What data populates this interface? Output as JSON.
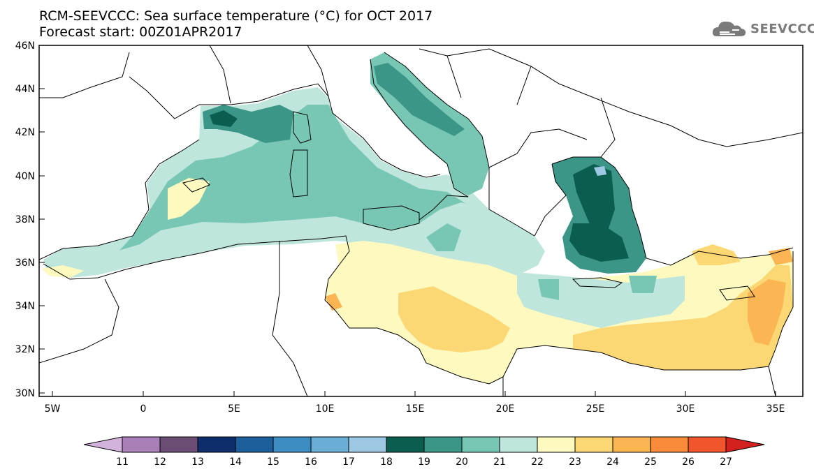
{
  "header": {
    "title_line1": "RCM-SEEVCCC: Sea surface temperature (°C) for OCT 2017",
    "title_line2": "Forecast start: 00Z01APR2017"
  },
  "logo": {
    "icon": "cloud-icon",
    "text": "SEEVCCC",
    "color": "#7a7a7a"
  },
  "map": {
    "lat_labels": [
      "46N",
      "44N",
      "42N",
      "40N",
      "38N",
      "36N",
      "34N",
      "32N",
      "30N"
    ],
    "lon_labels": [
      "5W",
      "0",
      "5E",
      "10E",
      "15E",
      "20E",
      "25E",
      "30E",
      "35E"
    ]
  },
  "colorbar": {
    "labels": [
      "11",
      "12",
      "13",
      "14",
      "15",
      "16",
      "17",
      "18",
      "19",
      "20",
      "21",
      "22",
      "23",
      "24",
      "25",
      "26",
      "27"
    ],
    "colors": [
      "#d3b3dc",
      "#a97fb8",
      "#6b4c73",
      "#0d2d6b",
      "#1d5f9b",
      "#3d8dc3",
      "#6aaed6",
      "#9cc8e3",
      "#0b5e4f",
      "#3b9687",
      "#78c7b4",
      "#bfe6dc",
      "#fdf9bf",
      "#fcd874",
      "#fbb553",
      "#f98b3a",
      "#f0552c",
      "#d4201e"
    ]
  }
}
